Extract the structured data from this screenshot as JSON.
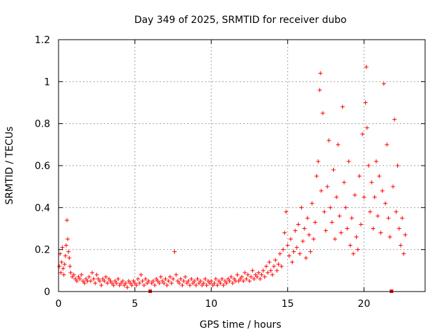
{
  "chart_data": {
    "type": "scatter",
    "title": "Day 349 of 2025, SRMTID for receiver dubo",
    "xlabel": "GPS time / hours",
    "ylabel": "SRMTID / TECUs",
    "xlim": [
      0,
      24
    ],
    "ylim": [
      0,
      1.2
    ],
    "xticks": [
      0,
      5,
      10,
      15,
      20
    ],
    "xtick_labels": [
      "0",
      "5",
      "10",
      "15",
      "20"
    ],
    "yticks": [
      0,
      0.2,
      0.4,
      0.6,
      0.8,
      1.0,
      1.2
    ],
    "ytick_labels": [
      "0",
      "0.2",
      "0.4",
      "0.6",
      "0.8",
      "1",
      "1.2"
    ],
    "grid": true,
    "marker": "plus",
    "color": "#ff0000",
    "series": [
      {
        "name": "SRMTID",
        "points": [
          [
            0.05,
            0.12
          ],
          [
            0.1,
            0.18
          ],
          [
            0.15,
            0.09
          ],
          [
            0.2,
            0.14
          ],
          [
            0.25,
            0.21
          ],
          [
            0.3,
            0.11
          ],
          [
            0.35,
            0.08
          ],
          [
            0.4,
            0.13
          ],
          [
            0.45,
            0.17
          ],
          [
            0.5,
            0.22
          ],
          [
            0.55,
            0.34
          ],
          [
            0.6,
            0.25
          ],
          [
            0.65,
            0.19
          ],
          [
            0.7,
            0.16
          ],
          [
            0.75,
            0.12
          ],
          [
            0.8,
            0.09
          ],
          [
            0.9,
            0.07
          ],
          [
            1.0,
            0.08
          ],
          [
            1.1,
            0.06
          ],
          [
            1.2,
            0.05
          ],
          [
            1.3,
            0.07
          ],
          [
            1.4,
            0.06
          ],
          [
            1.5,
            0.08
          ],
          [
            1.6,
            0.05
          ],
          [
            1.7,
            0.04
          ],
          [
            1.8,
            0.06
          ],
          [
            1.9,
            0.05
          ],
          [
            2.0,
            0.07
          ],
          [
            2.1,
            0.05
          ],
          [
            2.2,
            0.09
          ],
          [
            2.3,
            0.06
          ],
          [
            2.4,
            0.04
          ],
          [
            2.5,
            0.08
          ],
          [
            2.6,
            0.06
          ],
          [
            2.7,
            0.05
          ],
          [
            2.8,
            0.03
          ],
          [
            2.9,
            0.06
          ],
          [
            3.0,
            0.05
          ],
          [
            3.1,
            0.07
          ],
          [
            3.2,
            0.04
          ],
          [
            3.3,
            0.06
          ],
          [
            3.4,
            0.05
          ],
          [
            3.5,
            0.04
          ],
          [
            3.6,
            0.03
          ],
          [
            3.7,
            0.05
          ],
          [
            3.8,
            0.04
          ],
          [
            3.9,
            0.06
          ],
          [
            4.0,
            0.03
          ],
          [
            4.1,
            0.04
          ],
          [
            4.2,
            0.05
          ],
          [
            4.3,
            0.03
          ],
          [
            4.4,
            0.04
          ],
          [
            4.5,
            0.02
          ],
          [
            4.6,
            0.05
          ],
          [
            4.7,
            0.04
          ],
          [
            4.8,
            0.03
          ],
          [
            4.9,
            0.05
          ],
          [
            5.0,
            0.04
          ],
          [
            5.1,
            0.03
          ],
          [
            5.2,
            0.06
          ],
          [
            5.3,
            0.04
          ],
          [
            5.4,
            0.08
          ],
          [
            5.5,
            0.05
          ],
          [
            5.6,
            0.03
          ],
          [
            5.7,
            0.06
          ],
          [
            5.8,
            0.04
          ],
          [
            5.9,
            0.05
          ],
          [
            6.0,
            0.0
          ],
          [
            6.1,
            0.04
          ],
          [
            6.2,
            0.05
          ],
          [
            6.3,
            0.03
          ],
          [
            6.4,
            0.06
          ],
          [
            6.5,
            0.05
          ],
          [
            6.6,
            0.04
          ],
          [
            6.7,
            0.07
          ],
          [
            6.8,
            0.05
          ],
          [
            6.9,
            0.04
          ],
          [
            7.0,
            0.06
          ],
          [
            7.1,
            0.03
          ],
          [
            7.2,
            0.05
          ],
          [
            7.3,
            0.07
          ],
          [
            7.4,
            0.04
          ],
          [
            7.5,
            0.06
          ],
          [
            7.6,
            0.19
          ],
          [
            7.7,
            0.08
          ],
          [
            7.8,
            0.05
          ],
          [
            7.9,
            0.04
          ],
          [
            8.0,
            0.06
          ],
          [
            8.1,
            0.03
          ],
          [
            8.2,
            0.05
          ],
          [
            8.3,
            0.07
          ],
          [
            8.4,
            0.04
          ],
          [
            8.5,
            0.05
          ],
          [
            8.6,
            0.03
          ],
          [
            8.7,
            0.06
          ],
          [
            8.8,
            0.04
          ],
          [
            8.9,
            0.05
          ],
          [
            9.0,
            0.03
          ],
          [
            9.1,
            0.06
          ],
          [
            9.2,
            0.04
          ],
          [
            9.3,
            0.05
          ],
          [
            9.4,
            0.03
          ],
          [
            9.5,
            0.04
          ],
          [
            9.6,
            0.06
          ],
          [
            9.7,
            0.03
          ],
          [
            9.8,
            0.05
          ],
          [
            9.9,
            0.04
          ],
          [
            10.0,
            0.05
          ],
          [
            10.1,
            0.03
          ],
          [
            10.2,
            0.04
          ],
          [
            10.3,
            0.06
          ],
          [
            10.4,
            0.03
          ],
          [
            10.5,
            0.05
          ],
          [
            10.6,
            0.04
          ],
          [
            10.7,
            0.06
          ],
          [
            10.8,
            0.03
          ],
          [
            10.9,
            0.05
          ],
          [
            11.0,
            0.04
          ],
          [
            11.1,
            0.06
          ],
          [
            11.2,
            0.05
          ],
          [
            11.3,
            0.07
          ],
          [
            11.4,
            0.04
          ],
          [
            11.5,
            0.06
          ],
          [
            11.6,
            0.05
          ],
          [
            11.7,
            0.08
          ],
          [
            11.8,
            0.05
          ],
          [
            11.9,
            0.06
          ],
          [
            12.0,
            0.07
          ],
          [
            12.1,
            0.05
          ],
          [
            12.2,
            0.09
          ],
          [
            12.3,
            0.06
          ],
          [
            12.4,
            0.08
          ],
          [
            12.5,
            0.05
          ],
          [
            12.6,
            0.07
          ],
          [
            12.7,
            0.1
          ],
          [
            12.8,
            0.06
          ],
          [
            12.9,
            0.08
          ],
          [
            13.0,
            0.07
          ],
          [
            13.1,
            0.09
          ],
          [
            13.2,
            0.06
          ],
          [
            13.3,
            0.08
          ],
          [
            13.4,
            0.1
          ],
          [
            13.5,
            0.07
          ],
          [
            13.6,
            0.12
          ],
          [
            13.7,
            0.09
          ],
          [
            13.8,
            0.14
          ],
          [
            13.9,
            0.1
          ],
          [
            14.0,
            0.08
          ],
          [
            14.1,
            0.12
          ],
          [
            14.2,
            0.15
          ],
          [
            14.3,
            0.1
          ],
          [
            14.4,
            0.13
          ],
          [
            14.5,
            0.18
          ],
          [
            14.6,
            0.12
          ],
          [
            14.7,
            0.2
          ],
          [
            14.8,
            0.28
          ],
          [
            14.9,
            0.38
          ],
          [
            15.0,
            0.22
          ],
          [
            15.1,
            0.17
          ],
          [
            15.2,
            0.25
          ],
          [
            15.3,
            0.14
          ],
          [
            15.4,
            0.19
          ],
          [
            15.5,
            0.29
          ],
          [
            15.6,
            0.21
          ],
          [
            15.7,
            0.32
          ],
          [
            15.8,
            0.18
          ],
          [
            15.9,
            0.4
          ],
          [
            16.0,
            0.24
          ],
          [
            16.1,
            0.3
          ],
          [
            16.2,
            0.16
          ],
          [
            16.3,
            0.35
          ],
          [
            16.4,
            0.27
          ],
          [
            16.5,
            0.19
          ],
          [
            16.6,
            0.42
          ],
          [
            16.7,
            0.25
          ],
          [
            16.8,
            0.33
          ],
          [
            16.9,
            0.55
          ],
          [
            17.0,
            0.62
          ],
          [
            17.1,
            0.96
          ],
          [
            17.15,
            1.04
          ],
          [
            17.2,
            0.48
          ],
          [
            17.3,
            0.85
          ],
          [
            17.4,
            0.38
          ],
          [
            17.5,
            0.29
          ],
          [
            17.6,
            0.5
          ],
          [
            17.7,
            0.72
          ],
          [
            17.8,
            0.4
          ],
          [
            17.9,
            0.33
          ],
          [
            18.0,
            0.58
          ],
          [
            18.1,
            0.25
          ],
          [
            18.2,
            0.45
          ],
          [
            18.3,
            0.7
          ],
          [
            18.4,
            0.36
          ],
          [
            18.5,
            0.28
          ],
          [
            18.6,
            0.88
          ],
          [
            18.7,
            0.52
          ],
          [
            18.8,
            0.4
          ],
          [
            18.9,
            0.3
          ],
          [
            19.0,
            0.62
          ],
          [
            19.1,
            0.22
          ],
          [
            19.2,
            0.35
          ],
          [
            19.3,
            0.18
          ],
          [
            19.4,
            0.46
          ],
          [
            19.5,
            0.26
          ],
          [
            19.6,
            0.2
          ],
          [
            19.7,
            0.55
          ],
          [
            19.8,
            0.32
          ],
          [
            19.9,
            0.75
          ],
          [
            20.0,
            0.45
          ],
          [
            20.1,
            0.9
          ],
          [
            20.15,
            1.07
          ],
          [
            20.2,
            0.78
          ],
          [
            20.3,
            0.6
          ],
          [
            20.4,
            0.38
          ],
          [
            20.5,
            0.52
          ],
          [
            20.6,
            0.3
          ],
          [
            20.7,
            0.45
          ],
          [
            20.8,
            0.62
          ],
          [
            20.9,
            0.36
          ],
          [
            21.0,
            0.55
          ],
          [
            21.1,
            0.28
          ],
          [
            21.2,
            0.48
          ],
          [
            21.3,
            0.99
          ],
          [
            21.4,
            0.42
          ],
          [
            21.5,
            0.7
          ],
          [
            21.6,
            0.35
          ],
          [
            21.7,
            0.26
          ],
          [
            21.8,
            0.0
          ],
          [
            21.9,
            0.5
          ],
          [
            22.0,
            0.82
          ],
          [
            22.1,
            0.38
          ],
          [
            22.2,
            0.6
          ],
          [
            22.3,
            0.3
          ],
          [
            22.4,
            0.22
          ],
          [
            22.5,
            0.35
          ],
          [
            22.6,
            0.18
          ],
          [
            22.7,
            0.27
          ]
        ]
      }
    ]
  }
}
